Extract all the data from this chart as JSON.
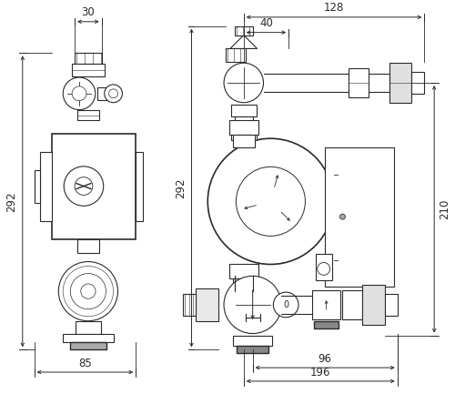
{
  "bg_color": "#ffffff",
  "lc": "#2a2a2a",
  "lw": 0.8,
  "fs": 8.5,
  "fig_w": 5.0,
  "fig_h": 4.44,
  "dpi": 100,
  "dims": {
    "left_30": "30",
    "left_85": "85",
    "left_292": "292",
    "right_128": "128",
    "right_40": "40",
    "right_292": "292",
    "right_210": "210",
    "right_96": "96",
    "right_196": "196"
  }
}
